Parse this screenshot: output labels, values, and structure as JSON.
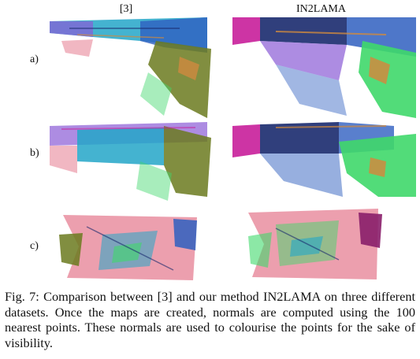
{
  "figure": {
    "columns": [
      "[3]",
      "IN2LAMA"
    ],
    "rows": [
      "a)",
      "b)",
      "c)"
    ]
  },
  "caption": "Fig. 7: Comparison between [3] and our method IN2LAMA on three different datasets. Once the maps are created, normals are computed using the 100 nearest points. These normals are used to colourise the points for the sake of visibility.",
  "colors": {
    "blue": "#2f5fc0",
    "cyan": "#23a6c8",
    "green": "#3fd86a",
    "olive": "#6b7a1e",
    "magenta": "#c81e9a",
    "purple": "#8a5bd6",
    "pink": "#e7879a",
    "orange": "#d08a3e",
    "navy": "#1a2a6e"
  }
}
